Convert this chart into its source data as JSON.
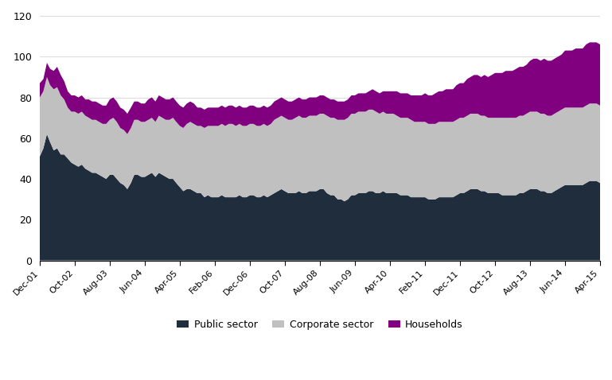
{
  "title": "",
  "xlabel": "",
  "ylabel": "",
  "ylim": [
    0,
    120
  ],
  "yticks": [
    0,
    20,
    40,
    60,
    80,
    100,
    120
  ],
  "xtick_labels": [
    "Dec-01",
    "Oct-02",
    "Aug-03",
    "Jun-04",
    "Apr-05",
    "Feb-06",
    "Dec-06",
    "Oct-07",
    "Aug-08",
    "Jun-09",
    "Apr-10",
    "Feb-11",
    "Dec-11",
    "Oct-12",
    "Aug-13",
    "Jun-14",
    "Apr-15"
  ],
  "xtick_dates": [
    "2001-12-01",
    "2002-10-01",
    "2003-08-01",
    "2004-06-01",
    "2005-04-01",
    "2006-02-01",
    "2006-12-01",
    "2007-10-01",
    "2008-08-01",
    "2009-06-01",
    "2010-04-01",
    "2011-02-01",
    "2011-12-01",
    "2012-10-01",
    "2013-08-01",
    "2014-06-01",
    "2015-04-01"
  ],
  "color_public": "#1f2d3d",
  "color_corporate": "#c0c0c0",
  "color_households": "#800080",
  "legend_labels": [
    "Public sector",
    "Corporate sector",
    "Households"
  ],
  "public_sector": [
    51,
    55,
    62,
    58,
    54,
    55,
    52,
    52,
    50,
    48,
    47,
    46,
    47,
    45,
    44,
    43,
    43,
    42,
    41,
    40,
    42,
    42,
    40,
    38,
    37,
    35,
    38,
    42,
    42,
    41,
    41,
    42,
    43,
    41,
    43,
    42,
    41,
    40,
    40,
    38,
    36,
    34,
    35,
    35,
    34,
    33,
    33,
    31,
    32,
    31,
    31,
    31,
    32,
    31,
    31,
    31,
    31,
    32,
    31,
    31,
    32,
    32,
    31,
    31,
    32,
    31,
    32,
    33,
    34,
    35,
    34,
    33,
    33,
    33,
    34,
    33,
    33,
    34,
    34,
    34,
    35,
    35,
    33,
    32,
    32,
    30,
    30,
    29,
    30,
    32,
    32,
    33,
    33,
    33,
    34,
    34,
    33,
    33,
    34,
    33,
    33,
    33,
    33,
    32,
    32,
    32,
    31,
    31,
    31,
    31,
    31,
    30,
    30,
    30,
    31,
    31,
    31,
    31,
    31,
    32,
    33,
    33,
    34,
    35,
    35,
    35,
    34,
    34,
    33,
    33,
    33,
    33,
    32,
    32,
    32,
    32,
    32,
    33,
    33,
    34,
    35,
    35,
    35,
    34,
    34,
    33,
    33,
    34,
    35,
    36,
    37,
    37,
    37,
    37,
    37,
    37,
    38,
    39,
    39,
    39,
    38,
    37,
    36,
    35,
    35,
    35,
    35
  ],
  "corporate_sector": [
    29,
    28,
    28,
    28,
    30,
    30,
    29,
    27,
    25,
    25,
    26,
    26,
    26,
    26,
    26,
    26,
    26,
    26,
    26,
    27,
    27,
    28,
    28,
    27,
    27,
    27,
    27,
    27,
    27,
    27,
    27,
    27,
    27,
    27,
    28,
    28,
    28,
    29,
    30,
    30,
    30,
    31,
    32,
    33,
    33,
    33,
    33,
    34,
    34,
    35,
    35,
    35,
    35,
    35,
    36,
    36,
    35,
    35,
    35,
    35,
    35,
    35,
    35,
    35,
    35,
    35,
    35,
    36,
    36,
    36,
    36,
    36,
    36,
    37,
    37,
    37,
    37,
    37,
    37,
    37,
    37,
    37,
    38,
    38,
    38,
    39,
    39,
    40,
    40,
    40,
    40,
    40,
    40,
    40,
    40,
    40,
    40,
    39,
    39,
    39,
    39,
    39,
    38,
    38,
    38,
    38,
    38,
    37,
    37,
    37,
    37,
    37,
    37,
    37,
    37,
    37,
    37,
    37,
    37,
    37,
    37,
    37,
    37,
    37,
    37,
    37,
    37,
    37,
    37,
    37,
    37,
    37,
    38,
    38,
    38,
    38,
    38,
    38,
    38,
    38,
    38,
    38,
    38,
    38,
    38,
    38,
    38,
    38,
    38,
    38,
    38,
    38,
    38,
    38,
    38,
    38,
    38,
    38,
    38,
    38,
    38,
    38,
    38,
    38,
    38,
    38,
    37
  ],
  "households": [
    7,
    6,
    7,
    8,
    9,
    10,
    10,
    9,
    8,
    8,
    8,
    8,
    8,
    8,
    9,
    9,
    9,
    9,
    9,
    9,
    10,
    10,
    10,
    10,
    10,
    10,
    10,
    9,
    9,
    9,
    9,
    10,
    10,
    10,
    10,
    10,
    10,
    10,
    10,
    10,
    10,
    10,
    10,
    10,
    10,
    9,
    9,
    9,
    9,
    9,
    9,
    9,
    9,
    9,
    9,
    9,
    9,
    9,
    9,
    9,
    9,
    9,
    9,
    9,
    9,
    9,
    9,
    9,
    9,
    9,
    9,
    9,
    9,
    9,
    9,
    9,
    9,
    9,
    9,
    9,
    9,
    9,
    9,
    9,
    9,
    9,
    9,
    9,
    9,
    9,
    9,
    9,
    9,
    9,
    9,
    10,
    10,
    10,
    10,
    11,
    11,
    11,
    12,
    12,
    12,
    12,
    12,
    13,
    13,
    13,
    14,
    14,
    14,
    15,
    15,
    15,
    16,
    16,
    16,
    17,
    17,
    17,
    18,
    18,
    19,
    19,
    19,
    20,
    20,
    21,
    22,
    22,
    22,
    23,
    23,
    23,
    24,
    24,
    24,
    24,
    25,
    26,
    26,
    26,
    27,
    27,
    27,
    27,
    27,
    27,
    28,
    28,
    28,
    29,
    29,
    29,
    30,
    30,
    30,
    30,
    30,
    31,
    31,
    31,
    32,
    37,
    38
  ]
}
